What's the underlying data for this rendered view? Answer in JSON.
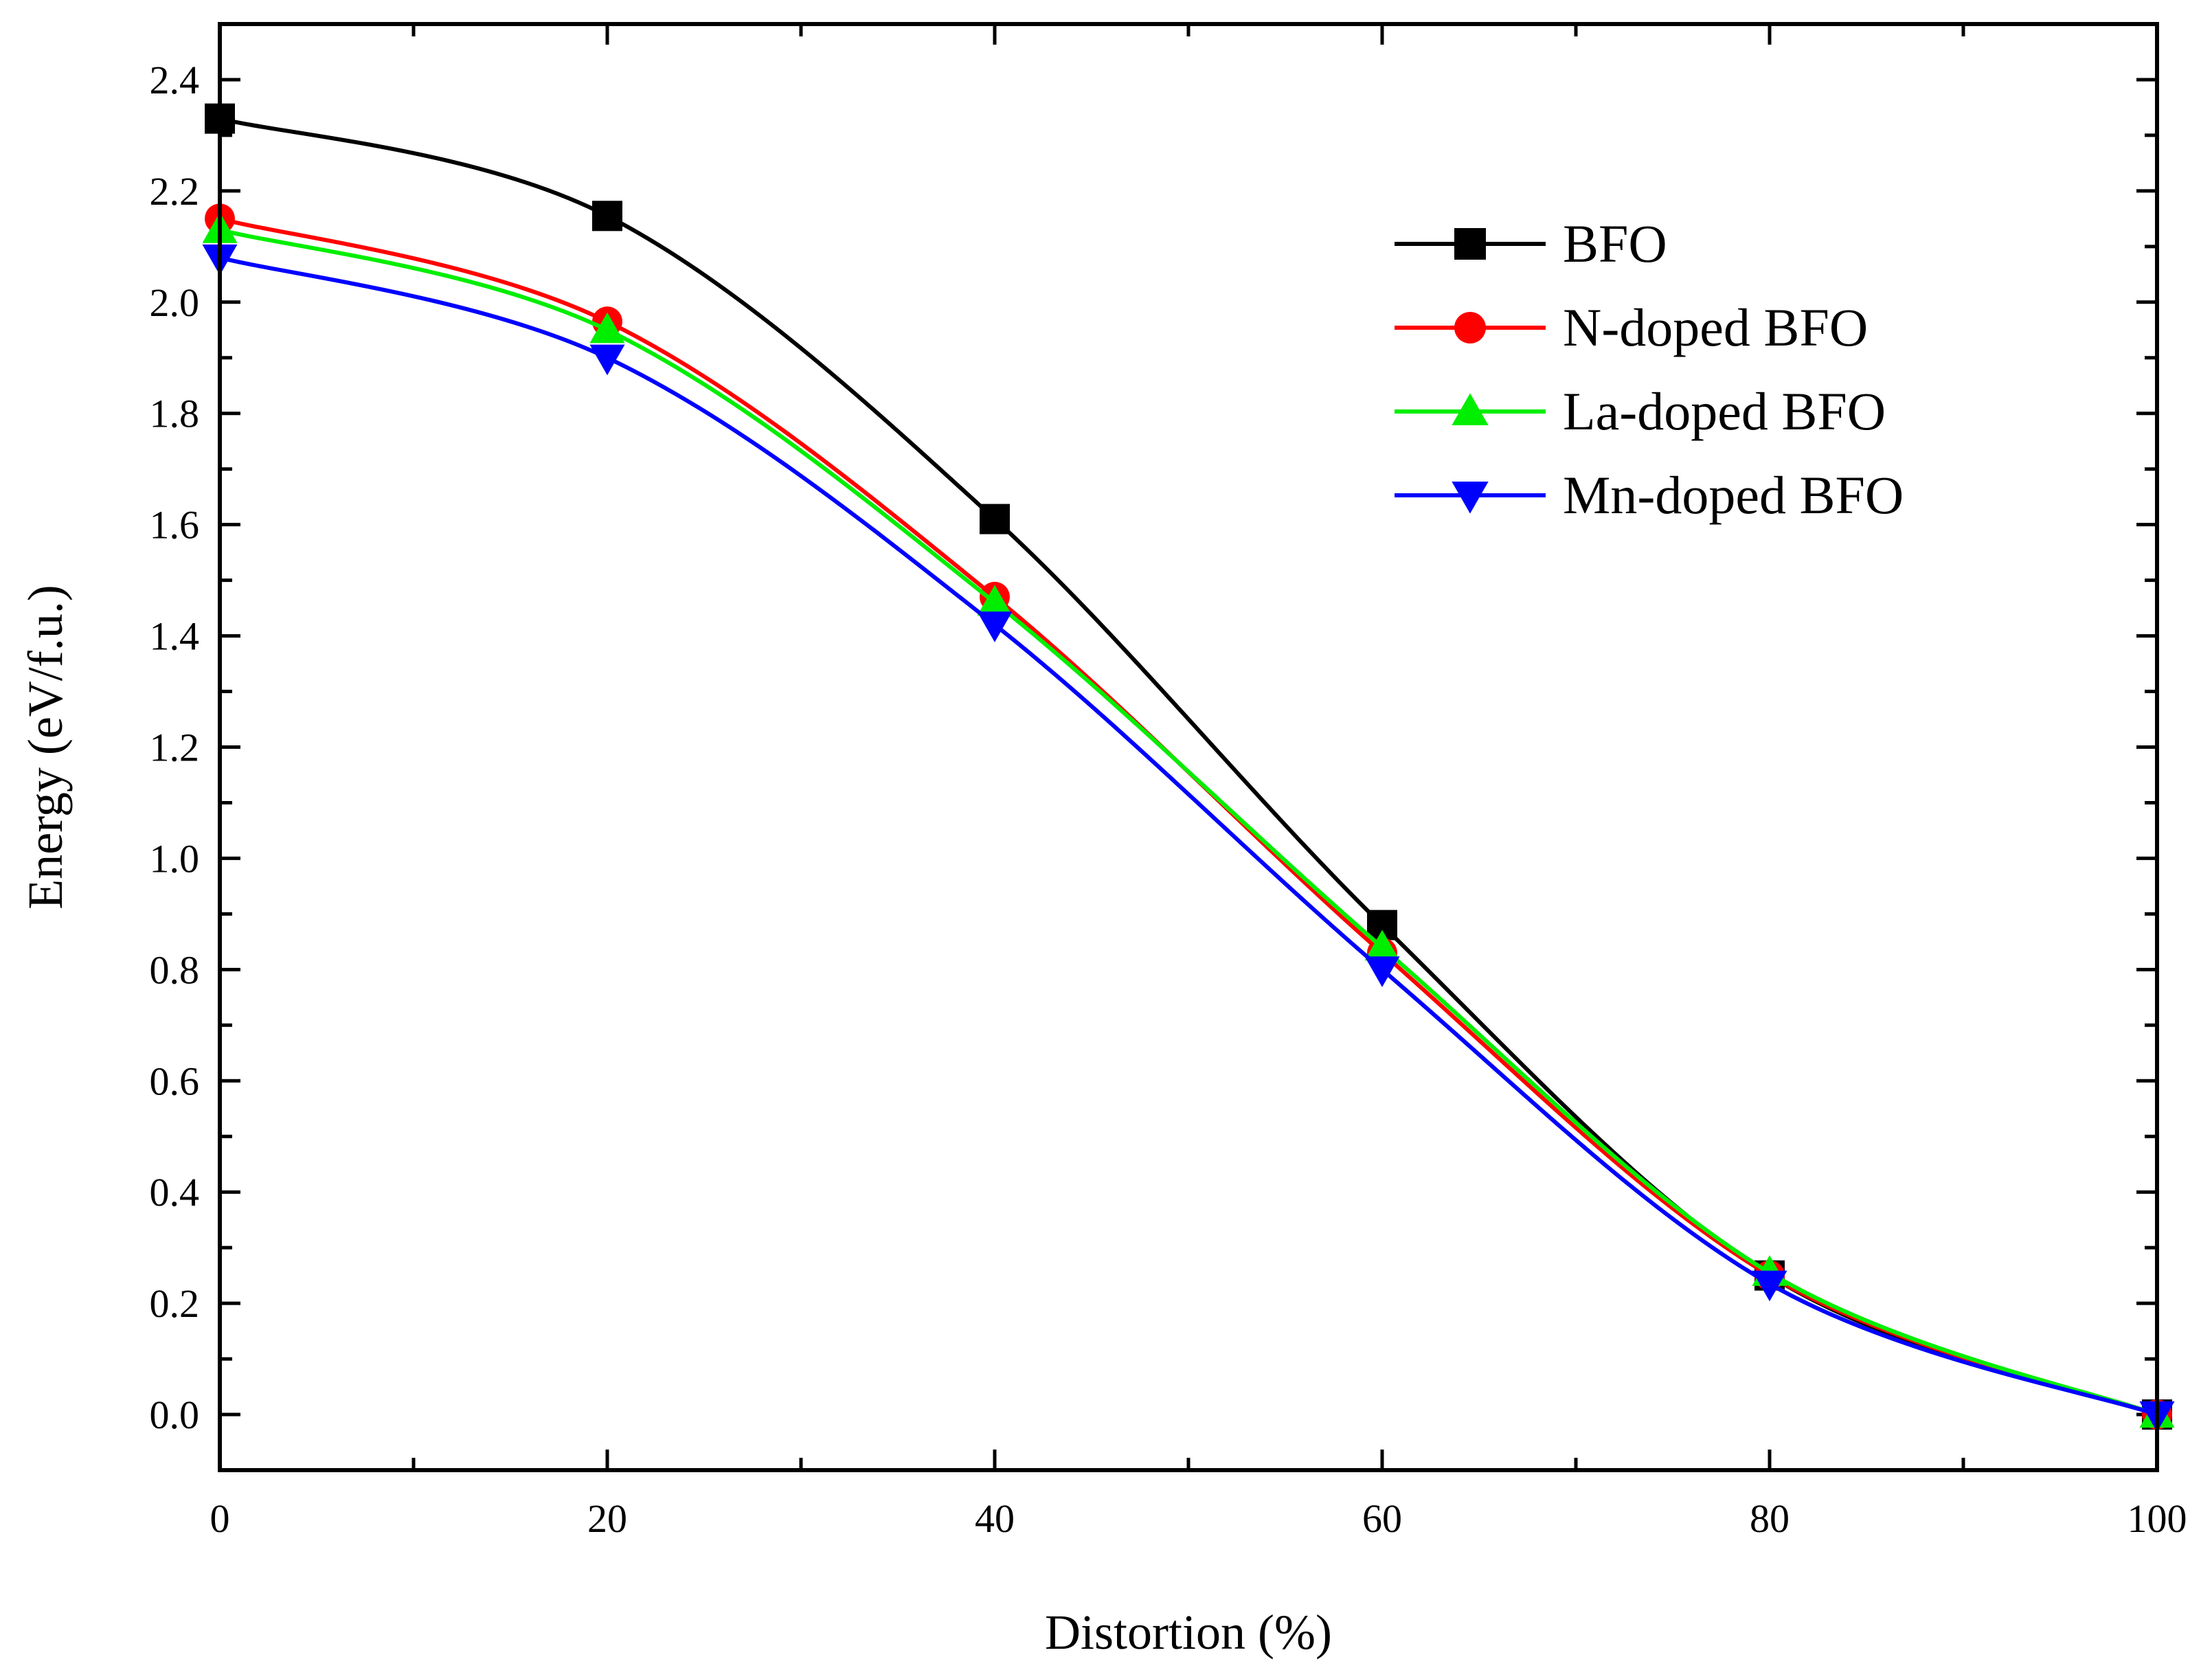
{
  "chart_data": {
    "type": "line",
    "title": "",
    "xlabel": "Distortion (%)",
    "ylabel": "Energy (eV/f.u.)",
    "xlim": [
      0,
      100
    ],
    "ylim": [
      -0.1,
      2.5
    ],
    "x_ticks": [
      "0",
      "20",
      "40",
      "60",
      "80",
      "100"
    ],
    "y_ticks": [
      "0.0",
      "0.2",
      "0.4",
      "0.6",
      "0.8",
      "1.0",
      "1.2",
      "1.4",
      "1.6",
      "1.8",
      "2.0",
      "2.2",
      "2.4"
    ],
    "grid": false,
    "legend_position": "top-right",
    "x": [
      0,
      20,
      40,
      60,
      80,
      100
    ],
    "series": [
      {
        "name": "BFO",
        "color": "#000000",
        "marker": "square",
        "values": [
          2.33,
          2.155,
          1.61,
          0.88,
          0.25,
          0.0
        ]
      },
      {
        "name": "N-doped BFO",
        "color": "#ff0000",
        "marker": "circle",
        "values": [
          2.15,
          1.965,
          1.47,
          0.83,
          0.25,
          0.0
        ]
      },
      {
        "name": "La-doped BFO",
        "color": "#00ee00",
        "marker": "triangle-up",
        "values": [
          2.13,
          1.95,
          1.46,
          0.84,
          0.255,
          0.0
        ]
      },
      {
        "name": "Mn-doped BFO",
        "color": "#0000ff",
        "marker": "triangle-down",
        "values": [
          2.08,
          1.9,
          1.42,
          0.8,
          0.235,
          0.0
        ]
      }
    ]
  }
}
